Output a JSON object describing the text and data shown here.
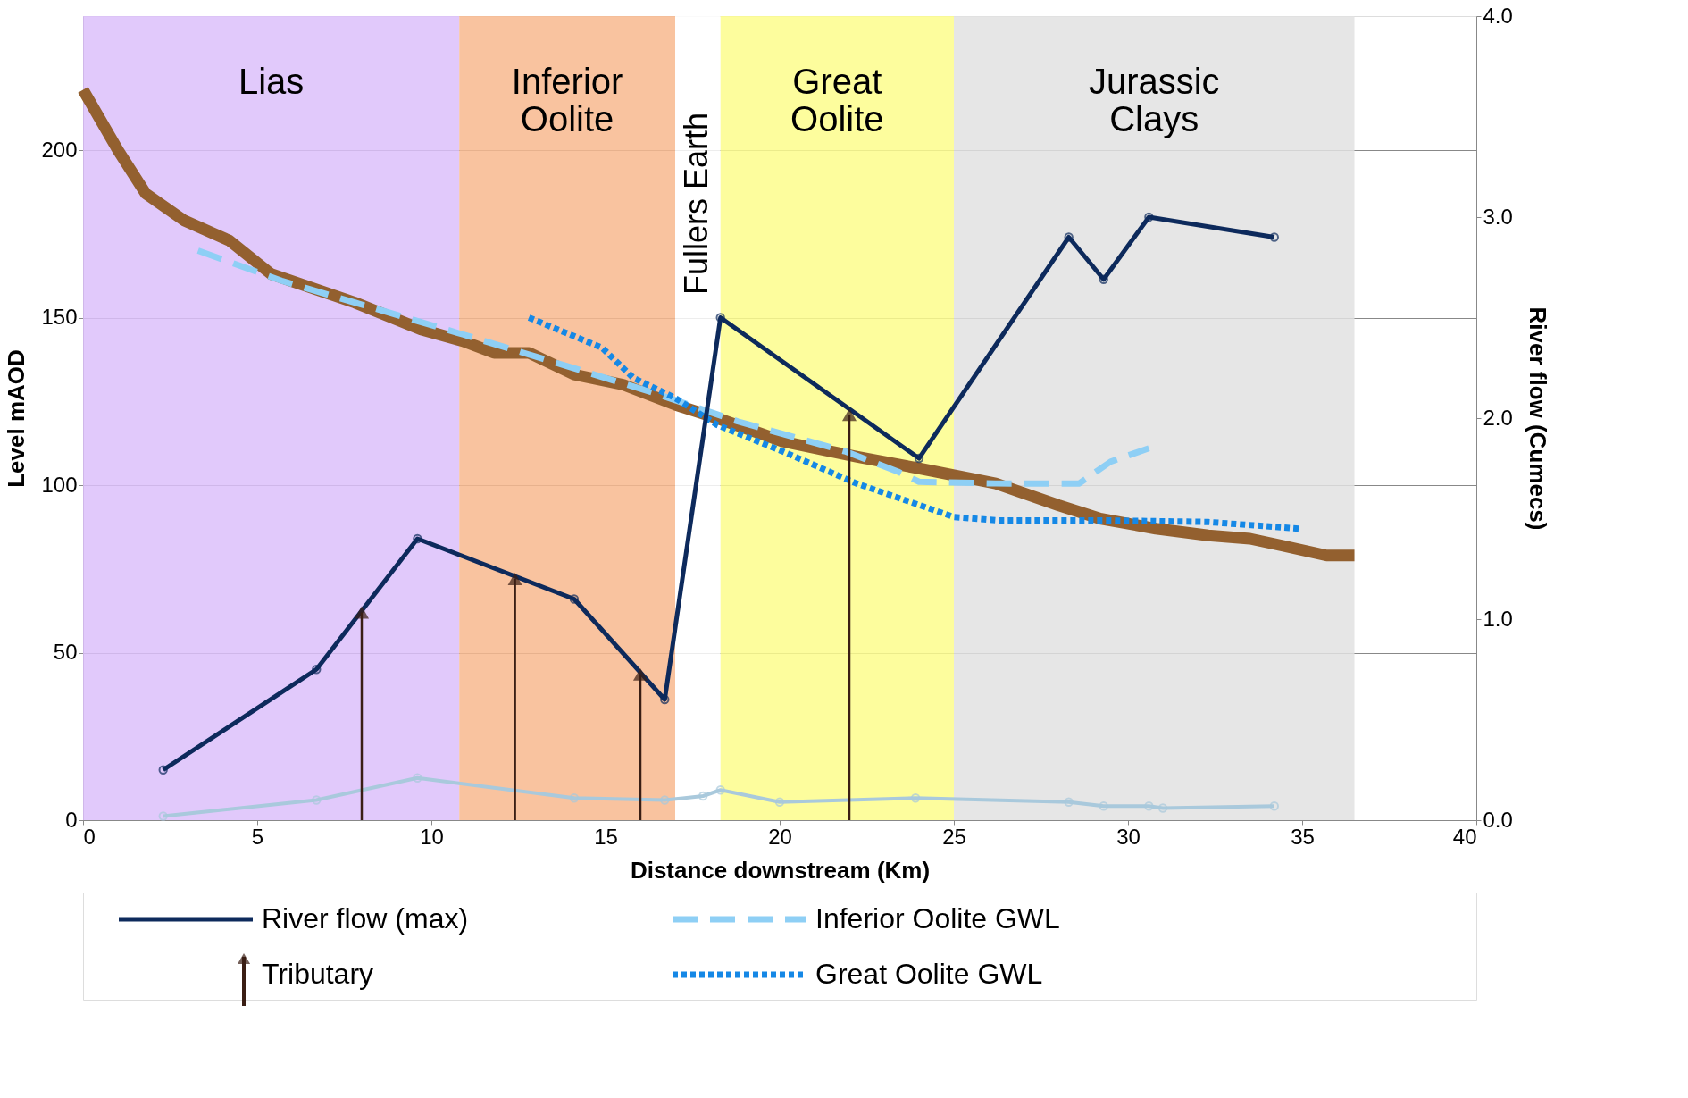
{
  "chart_data": {
    "type": "line",
    "xlabel": "Distance downstream  (Km)",
    "ylabel": "Level mAOD",
    "y2label": "River flow (Cumecs)",
    "xlim": [
      0,
      40
    ],
    "xticks": [
      0,
      5,
      10,
      15,
      20,
      25,
      30,
      35,
      40
    ],
    "ylim": [
      0,
      240
    ],
    "yticks": [
      0,
      50,
      100,
      150,
      200
    ],
    "y2lim": [
      0,
      4
    ],
    "y2ticks": [
      {
        "value": 0,
        "label": "0.0"
      },
      {
        "value": 1,
        "label": "1.0"
      },
      {
        "value": 2,
        "label": "2.0"
      },
      {
        "value": 3,
        "label": "3.0"
      },
      {
        "value": 4,
        "label": "4.0"
      }
    ],
    "grid": "y",
    "legend": "bottom",
    "bands": [
      {
        "axis": "x",
        "from": 0,
        "to": 10.8,
        "label": "Lias",
        "color": "#dcc0fa"
      },
      {
        "axis": "x",
        "from": 10.8,
        "to": 17,
        "label": "Inferior Oolite",
        "color": "#f8b98e"
      },
      {
        "axis": "x",
        "from": 17,
        "to": 18.3,
        "label": "Fullers Earth",
        "color": "#ffffff"
      },
      {
        "axis": "x",
        "from": 18.3,
        "to": 25,
        "label": "Great Oolite",
        "color": "#fdfd8c"
      },
      {
        "axis": "x",
        "from": 25,
        "to": 36.5,
        "label": "Jurassic Clays",
        "color": "#e2e2e2"
      }
    ],
    "series": [
      {
        "color": "#93602f",
        "line_style": "solid",
        "x": [
          0,
          1,
          1.8,
          2.9,
          4.2,
          5.4,
          7.8,
          9.7,
          10.9,
          11.8,
          12.8,
          14.1,
          15.5,
          17,
          18.2,
          20.1,
          22.2,
          24,
          26.2,
          28,
          29.2,
          30.8,
          32.3,
          33.5,
          34.4,
          35.7,
          36.5
        ],
        "values": [
          218,
          200,
          187,
          179,
          173,
          163,
          154.5,
          146.5,
          143,
          139.5,
          139.5,
          133,
          130,
          124,
          120,
          113,
          108.5,
          105,
          100.5,
          94,
          90,
          87,
          85,
          84,
          82,
          79,
          79
        ]
      },
      {
        "name": "Inferior Oolite GWL",
        "color": "#8ecff5",
        "line_style": "dashed",
        "x": [
          3.3,
          5.7,
          7.8,
          10.9,
          13.9,
          16.4,
          18.8,
          21.9,
          23.4,
          24,
          26.2,
          28.6,
          29.5,
          30.6
        ],
        "values": [
          170,
          161,
          154.5,
          145,
          135.5,
          127.5,
          119,
          110,
          104,
          101,
          100.5,
          100.5,
          107,
          111
        ]
      },
      {
        "name": "Great Oolite GWL",
        "color": "#1588e6",
        "line_style": "dotted",
        "x": [
          12.8,
          14.9,
          15.8,
          17,
          18.2,
          20.1,
          22.2,
          25,
          26.2,
          29.2,
          32.3,
          34.9
        ],
        "values": [
          150,
          141,
          132,
          126,
          118,
          110,
          100.5,
          90.5,
          89.5,
          89.5,
          89,
          87
        ]
      },
      {
        "axis": "y2",
        "color": "#a9c9dc",
        "line_style": "solid",
        "marker": "circle",
        "x": [
          2.3,
          6.7,
          9.6,
          14.1,
          16.7,
          17.8,
          18.3,
          20,
          23.9,
          28.3,
          29.3,
          30.6,
          31,
          34.2
        ],
        "values": [
          0.02,
          0.1,
          0.21,
          0.11,
          0.1,
          0.12,
          0.15,
          0.09,
          0.11,
          0.09,
          0.07,
          0.07,
          0.06,
          0.07
        ]
      },
      {
        "axis": "y2",
        "name": "River flow (max)",
        "color": "#0d2a5c",
        "line_style": "solid",
        "marker": "circle",
        "x": [
          2.3,
          6.7,
          9.6,
          14.1,
          16.7,
          18.3,
          24,
          28.3,
          29.3,
          30.6,
          34.2
        ],
        "values": [
          0.25,
          0.75,
          1.4,
          1.1,
          0.6,
          2.5,
          1.8,
          2.9,
          2.69,
          3.0,
          2.9
        ]
      },
      {
        "type": "lollipop",
        "name": "Tributary",
        "color": "#3a1e14",
        "marker": "triangle",
        "x": [
          8,
          12.4,
          16,
          22
        ],
        "values": [
          62,
          72,
          43.5,
          121
        ]
      }
    ]
  }
}
